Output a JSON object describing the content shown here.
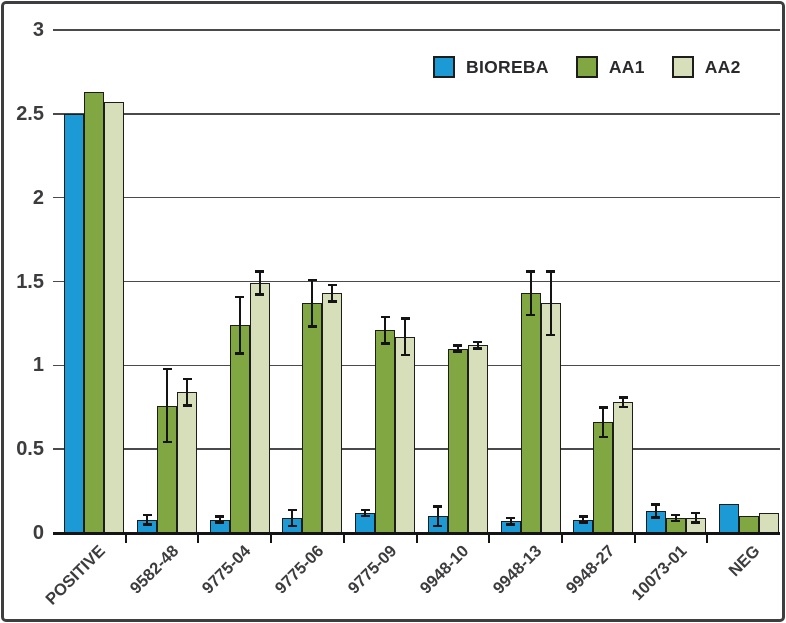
{
  "figure": {
    "background": "#ffffff",
    "frame_border_color": "#3e3e40",
    "gridline_color": "#4a4a4c",
    "axis_color": "#141414",
    "label_color": "#3c3c3e"
  },
  "chart_data": {
    "type": "bar",
    "title": "",
    "xlabel": "",
    "ylabel": "",
    "categories": [
      "POSITIVE",
      "9582-48",
      "9775-04",
      "9775-06",
      "9775-09",
      "9948-10",
      "9948-13",
      "9948-27",
      "10073-01",
      "NEG"
    ],
    "series": [
      {
        "name": "BIOREBA",
        "color": "#1b9ad5",
        "values": [
          2.5,
          0.08,
          0.08,
          0.09,
          0.12,
          0.1,
          0.07,
          0.08,
          0.13,
          0.17
        ],
        "errors": [
          null,
          0.03,
          0.02,
          0.05,
          0.02,
          0.06,
          0.02,
          0.02,
          0.04,
          null
        ]
      },
      {
        "name": "AA1",
        "color": "#81a742",
        "values": [
          2.63,
          0.76,
          1.24,
          1.37,
          1.21,
          1.1,
          1.43,
          0.66,
          0.09,
          0.1
        ],
        "errors": [
          null,
          0.22,
          0.17,
          0.14,
          0.08,
          0.02,
          0.13,
          0.09,
          0.02,
          null
        ]
      },
      {
        "name": "AA2",
        "color": "#d6deba",
        "values": [
          2.57,
          0.84,
          1.49,
          1.43,
          1.17,
          1.12,
          1.37,
          0.78,
          0.09,
          0.12
        ],
        "errors": [
          null,
          0.08,
          0.07,
          0.05,
          0.11,
          0.02,
          0.19,
          0.03,
          0.03,
          null
        ]
      }
    ],
    "ylim": [
      0,
      3
    ],
    "y_ticks": [
      0,
      0.5,
      1,
      1.5,
      2,
      2.5,
      3
    ],
    "y_tick_labels": [
      "0",
      "0.5",
      "1",
      "1.5",
      "2",
      "2.5",
      "3"
    ],
    "grid": true,
    "error_bars": true,
    "legend_position": "top-right"
  }
}
